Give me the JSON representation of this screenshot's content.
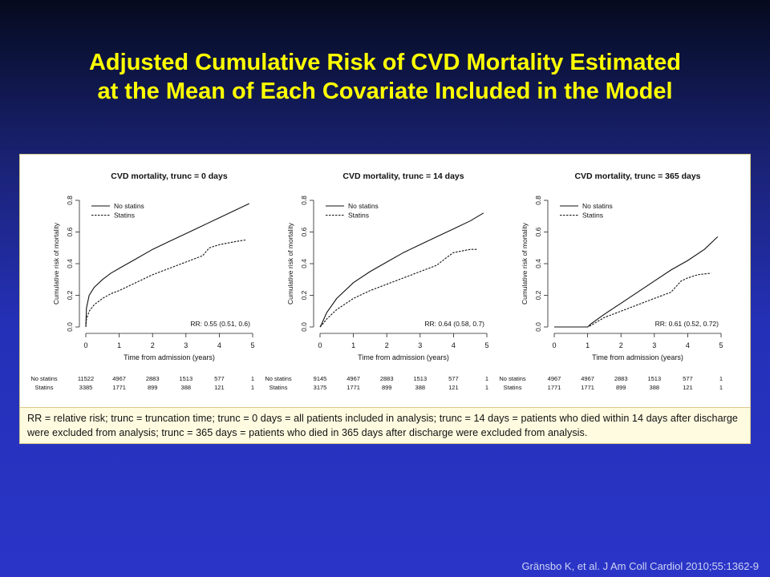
{
  "slide": {
    "title_line1": "Adjusted Cumulative Risk of CVD Mortality Estimated",
    "title_line2": "at the Mean of Each Covariate Included in the Model",
    "caption": "RR = relative risk; trunc = truncation time; trunc = 0 days = all patients included in analysis; trunc = 14 days = patients who died within 14 days after discharge were excluded from analysis; trunc = 365 days = patients who died in 365 days after discharge were excluded from analysis.",
    "citation": "Gränsbo K, et al. J Am Coll Cardiol 2010;55:1362-9"
  },
  "colors": {
    "title": "#ffff00",
    "background": "#2a35c8",
    "caption_bg": "#fffbe0"
  },
  "chart_data": [
    {
      "type": "line",
      "title": "CVD mortality, trunc = 0 days",
      "xlabel": "Time from admission (years)",
      "ylabel": "Cumulative risk of mortality",
      "xlim": [
        0,
        5
      ],
      "ylim": [
        0,
        0.8
      ],
      "xticks": [
        0,
        1,
        2,
        3,
        4,
        5
      ],
      "yticks": [
        0.0,
        0.2,
        0.4,
        0.6,
        0.8
      ],
      "legend": "top-left",
      "annotation": "RR: 0.55 (0.51, 0.6)",
      "series": [
        {
          "name": "No statins",
          "style": "solid",
          "x": [
            0,
            0.02,
            0.1,
            0.25,
            0.5,
            0.75,
            1,
            1.5,
            2,
            2.5,
            3,
            3.5,
            4,
            4.5,
            4.9
          ],
          "y": [
            0,
            0.12,
            0.2,
            0.25,
            0.3,
            0.34,
            0.37,
            0.43,
            0.49,
            0.54,
            0.59,
            0.64,
            0.69,
            0.74,
            0.78
          ]
        },
        {
          "name": "Statins",
          "style": "dashed",
          "x": [
            0,
            0.02,
            0.1,
            0.25,
            0.5,
            0.75,
            1,
            1.5,
            2,
            2.5,
            3,
            3.5,
            3.7,
            4,
            4.5,
            4.8
          ],
          "y": [
            0,
            0.05,
            0.1,
            0.14,
            0.18,
            0.21,
            0.23,
            0.28,
            0.33,
            0.37,
            0.41,
            0.45,
            0.5,
            0.52,
            0.54,
            0.55
          ]
        }
      ],
      "risk_table": {
        "x": [
          0,
          1,
          2,
          3,
          4,
          5
        ],
        "rows": [
          {
            "label": "No statins",
            "values": [
              "11522",
              "4967",
              "2883",
              "1513",
              "577",
              "1"
            ]
          },
          {
            "label": "Statins",
            "values": [
              "3385",
              "1771",
              "899",
              "388",
              "121",
              "1"
            ]
          }
        ]
      }
    },
    {
      "type": "line",
      "title": "CVD mortality, trunc = 14 days",
      "xlabel": "Time from admission (years)",
      "ylabel": "Cumulative risk of mortality",
      "xlim": [
        0,
        5
      ],
      "ylim": [
        0,
        0.8
      ],
      "xticks": [
        0,
        1,
        2,
        3,
        4,
        5
      ],
      "yticks": [
        0.0,
        0.2,
        0.4,
        0.6,
        0.8
      ],
      "legend": "top-left",
      "annotation": "RR: 0.64 (0.58, 0.7)",
      "series": [
        {
          "name": "No statins",
          "style": "solid",
          "x": [
            0,
            0.05,
            0.2,
            0.5,
            1,
            1.5,
            2,
            2.5,
            3,
            3.5,
            4,
            4.5,
            4.9
          ],
          "y": [
            0,
            0.02,
            0.09,
            0.18,
            0.28,
            0.35,
            0.41,
            0.47,
            0.52,
            0.57,
            0.62,
            0.67,
            0.72
          ]
        },
        {
          "name": "Statins",
          "style": "dashed",
          "x": [
            0,
            0.05,
            0.2,
            0.5,
            1,
            1.5,
            2,
            2.5,
            3,
            3.5,
            3.8,
            4,
            4.5,
            4.7
          ],
          "y": [
            0,
            0.01,
            0.05,
            0.11,
            0.18,
            0.23,
            0.27,
            0.31,
            0.35,
            0.39,
            0.44,
            0.47,
            0.49,
            0.49
          ]
        }
      ],
      "risk_table": {
        "x": [
          0,
          1,
          2,
          3,
          4,
          5
        ],
        "rows": [
          {
            "label": "No statins",
            "values": [
              "9145",
              "4967",
              "2883",
              "1513",
              "577",
              "1"
            ]
          },
          {
            "label": "Statins",
            "values": [
              "3175",
              "1771",
              "899",
              "388",
              "121",
              "1"
            ]
          }
        ]
      }
    },
    {
      "type": "line",
      "title": "CVD mortality, trunc = 365 days",
      "xlabel": "Time from admission (years)",
      "ylabel": "Cumulative risk of mortality",
      "xlim": [
        0,
        5
      ],
      "ylim": [
        0,
        0.8
      ],
      "xticks": [
        0,
        1,
        2,
        3,
        4,
        5
      ],
      "yticks": [
        0.0,
        0.2,
        0.4,
        0.6,
        0.8
      ],
      "legend": "top-left",
      "annotation": "RR: 0.61 (0.52, 0.72)",
      "series": [
        {
          "name": "No statins",
          "style": "solid",
          "x": [
            0,
            1,
            1.1,
            1.5,
            2,
            2.5,
            3,
            3.5,
            4,
            4.5,
            4.9
          ],
          "y": [
            0,
            0,
            0.02,
            0.08,
            0.15,
            0.22,
            0.29,
            0.36,
            0.42,
            0.49,
            0.57
          ]
        },
        {
          "name": "Statins",
          "style": "dashed",
          "x": [
            0,
            1,
            1.1,
            1.5,
            2,
            2.5,
            3,
            3.5,
            3.8,
            4,
            4.3,
            4.7
          ],
          "y": [
            0,
            0,
            0.01,
            0.06,
            0.1,
            0.14,
            0.18,
            0.22,
            0.29,
            0.31,
            0.33,
            0.34
          ]
        }
      ],
      "risk_table": {
        "x": [
          0,
          1,
          2,
          3,
          4,
          5
        ],
        "rows": [
          {
            "label": "No statins",
            "values": [
              "4967",
              "4967",
              "2883",
              "1513",
              "577",
              "1"
            ]
          },
          {
            "label": "Statins",
            "values": [
              "1771",
              "1771",
              "899",
              "388",
              "121",
              "1"
            ]
          }
        ]
      }
    }
  ]
}
